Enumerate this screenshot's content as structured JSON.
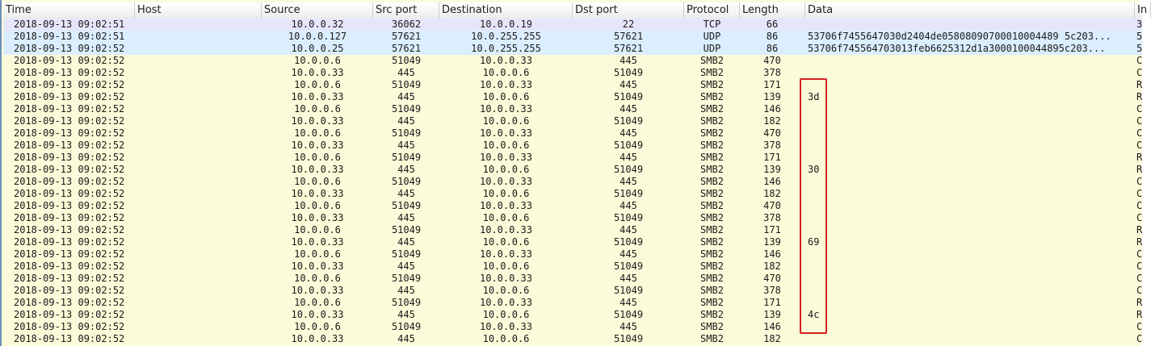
{
  "columns": {
    "time": "Time",
    "host": "Host",
    "source": "Source",
    "src_port": "Src port",
    "destination": "Destination",
    "dst_port": "Dst port",
    "protocol": "Protocol",
    "length": "Length",
    "data": "Data",
    "info": "In"
  },
  "rows": [
    {
      "time": "2018-09-13 09:02:51",
      "host": "",
      "src": "10.0.0.32",
      "sport": "36062",
      "dst": "10.0.0.19",
      "dport": "22",
      "proto": "TCP",
      "len": "66",
      "data": "",
      "info": "3",
      "cls": "tcp"
    },
    {
      "time": "2018-09-13 09:02:51",
      "host": "",
      "src": "10.0.0.127",
      "sport": "57621",
      "dst": "10.0.255.255",
      "dport": "57621",
      "proto": "UDP",
      "len": "86",
      "data": "53706f7455647030d2404de05808090700010004489 5c203...",
      "info": "5",
      "cls": "udp"
    },
    {
      "time": "2018-09-13 09:02:52",
      "host": "",
      "src": "10.0.0.25",
      "sport": "57621",
      "dst": "10.0.255.255",
      "dport": "57621",
      "proto": "UDP",
      "len": "86",
      "data": "53706f745564703013feb6625312d1a3000100044895c203...",
      "info": "5",
      "cls": "udp"
    },
    {
      "time": "2018-09-13 09:02:52",
      "host": "",
      "src": "10.0.0.6",
      "sport": "51049",
      "dst": "10.0.0.33",
      "dport": "445",
      "proto": "SMB2",
      "len": "470",
      "data": "",
      "info": "C",
      "cls": "smb"
    },
    {
      "time": "2018-09-13 09:02:52",
      "host": "",
      "src": "10.0.0.33",
      "sport": "445",
      "dst": "10.0.0.6",
      "dport": "51049",
      "proto": "SMB2",
      "len": "378",
      "data": "",
      "info": "C",
      "cls": "smb"
    },
    {
      "time": "2018-09-13 09:02:52",
      "host": "",
      "src": "10.0.0.6",
      "sport": "51049",
      "dst": "10.0.0.33",
      "dport": "445",
      "proto": "SMB2",
      "len": "171",
      "data": "",
      "info": "R",
      "cls": "smb"
    },
    {
      "time": "2018-09-13 09:02:52",
      "host": "",
      "src": "10.0.0.33",
      "sport": "445",
      "dst": "10.0.0.6",
      "dport": "51049",
      "proto": "SMB2",
      "len": "139",
      "data": "3d",
      "info": "R",
      "cls": "smb"
    },
    {
      "time": "2018-09-13 09:02:52",
      "host": "",
      "src": "10.0.0.6",
      "sport": "51049",
      "dst": "10.0.0.33",
      "dport": "445",
      "proto": "SMB2",
      "len": "146",
      "data": "",
      "info": "C",
      "cls": "smb"
    },
    {
      "time": "2018-09-13 09:02:52",
      "host": "",
      "src": "10.0.0.33",
      "sport": "445",
      "dst": "10.0.0.6",
      "dport": "51049",
      "proto": "SMB2",
      "len": "182",
      "data": "",
      "info": "C",
      "cls": "smb"
    },
    {
      "time": "2018-09-13 09:02:52",
      "host": "",
      "src": "10.0.0.6",
      "sport": "51049",
      "dst": "10.0.0.33",
      "dport": "445",
      "proto": "SMB2",
      "len": "470",
      "data": "",
      "info": "C",
      "cls": "smb"
    },
    {
      "time": "2018-09-13 09:02:52",
      "host": "",
      "src": "10.0.0.33",
      "sport": "445",
      "dst": "10.0.0.6",
      "dport": "51049",
      "proto": "SMB2",
      "len": "378",
      "data": "",
      "info": "C",
      "cls": "smb"
    },
    {
      "time": "2018-09-13 09:02:52",
      "host": "",
      "src": "10.0.0.6",
      "sport": "51049",
      "dst": "10.0.0.33",
      "dport": "445",
      "proto": "SMB2",
      "len": "171",
      "data": "",
      "info": "R",
      "cls": "smb"
    },
    {
      "time": "2018-09-13 09:02:52",
      "host": "",
      "src": "10.0.0.33",
      "sport": "445",
      "dst": "10.0.0.6",
      "dport": "51049",
      "proto": "SMB2",
      "len": "139",
      "data": "30",
      "info": "R",
      "cls": "smb"
    },
    {
      "time": "2018-09-13 09:02:52",
      "host": "",
      "src": "10.0.0.6",
      "sport": "51049",
      "dst": "10.0.0.33",
      "dport": "445",
      "proto": "SMB2",
      "len": "146",
      "data": "",
      "info": "C",
      "cls": "smb"
    },
    {
      "time": "2018-09-13 09:02:52",
      "host": "",
      "src": "10.0.0.33",
      "sport": "445",
      "dst": "10.0.0.6",
      "dport": "51049",
      "proto": "SMB2",
      "len": "182",
      "data": "",
      "info": "C",
      "cls": "smb"
    },
    {
      "time": "2018-09-13 09:02:52",
      "host": "",
      "src": "10.0.0.6",
      "sport": "51049",
      "dst": "10.0.0.33",
      "dport": "445",
      "proto": "SMB2",
      "len": "470",
      "data": "",
      "info": "C",
      "cls": "smb"
    },
    {
      "time": "2018-09-13 09:02:52",
      "host": "",
      "src": "10.0.0.33",
      "sport": "445",
      "dst": "10.0.0.6",
      "dport": "51049",
      "proto": "SMB2",
      "len": "378",
      "data": "",
      "info": "C",
      "cls": "smb"
    },
    {
      "time": "2018-09-13 09:02:52",
      "host": "",
      "src": "10.0.0.6",
      "sport": "51049",
      "dst": "10.0.0.33",
      "dport": "445",
      "proto": "SMB2",
      "len": "171",
      "data": "",
      "info": "R",
      "cls": "smb"
    },
    {
      "time": "2018-09-13 09:02:52",
      "host": "",
      "src": "10.0.0.33",
      "sport": "445",
      "dst": "10.0.0.6",
      "dport": "51049",
      "proto": "SMB2",
      "len": "139",
      "data": "69",
      "info": "R",
      "cls": "smb"
    },
    {
      "time": "2018-09-13 09:02:52",
      "host": "",
      "src": "10.0.0.6",
      "sport": "51049",
      "dst": "10.0.0.33",
      "dport": "445",
      "proto": "SMB2",
      "len": "146",
      "data": "",
      "info": "C",
      "cls": "smb"
    },
    {
      "time": "2018-09-13 09:02:52",
      "host": "",
      "src": "10.0.0.33",
      "sport": "445",
      "dst": "10.0.0.6",
      "dport": "51049",
      "proto": "SMB2",
      "len": "182",
      "data": "",
      "info": "C",
      "cls": "smb"
    },
    {
      "time": "2018-09-13 09:02:52",
      "host": "",
      "src": "10.0.0.6",
      "sport": "51049",
      "dst": "10.0.0.33",
      "dport": "445",
      "proto": "SMB2",
      "len": "470",
      "data": "",
      "info": "C",
      "cls": "smb"
    },
    {
      "time": "2018-09-13 09:02:52",
      "host": "",
      "src": "10.0.0.33",
      "sport": "445",
      "dst": "10.0.0.6",
      "dport": "51049",
      "proto": "SMB2",
      "len": "378",
      "data": "",
      "info": "C",
      "cls": "smb"
    },
    {
      "time": "2018-09-13 09:02:52",
      "host": "",
      "src": "10.0.0.6",
      "sport": "51049",
      "dst": "10.0.0.33",
      "dport": "445",
      "proto": "SMB2",
      "len": "171",
      "data": "",
      "info": "R",
      "cls": "smb"
    },
    {
      "time": "2018-09-13 09:02:52",
      "host": "",
      "src": "10.0.0.33",
      "sport": "445",
      "dst": "10.0.0.6",
      "dport": "51049",
      "proto": "SMB2",
      "len": "139",
      "data": "4c",
      "info": "R",
      "cls": "smb"
    },
    {
      "time": "2018-09-13 09:02:52",
      "host": "",
      "src": "10.0.0.6",
      "sport": "51049",
      "dst": "10.0.0.33",
      "dport": "445",
      "proto": "SMB2",
      "len": "146",
      "data": "",
      "info": "C",
      "cls": "smb"
    },
    {
      "time": "2018-09-13 09:02:52",
      "host": "",
      "src": "10.0.0.33",
      "sport": "445",
      "dst": "10.0.0.6",
      "dport": "51049",
      "proto": "SMB2",
      "len": "182",
      "data": "",
      "info": "C",
      "cls": "smb"
    }
  ],
  "colors": {
    "tcp_row": "#e6e6fb",
    "udp_row": "#dbeeff",
    "smb_row": "#fbfbd9",
    "highlight_border": "#d42020"
  }
}
